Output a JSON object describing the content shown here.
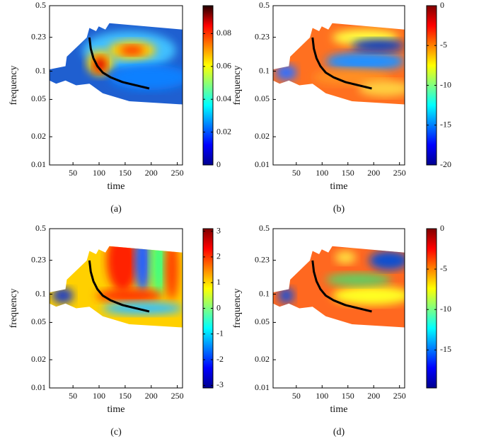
{
  "chart_data": [
    {
      "type": "heatmap",
      "caption": "(a)",
      "xlabel": "time",
      "ylabel": "frequency",
      "xlim": [
        5,
        260
      ],
      "xticks": [
        50,
        100,
        150,
        200,
        250
      ],
      "ylim": [
        0.01,
        0.5
      ],
      "yticks": [
        0.01,
        0.02,
        0.05,
        0.1,
        0.23,
        0.5
      ],
      "ylog": true,
      "colormap": "jet",
      "clim": [
        0,
        0.097
      ],
      "cticks": [
        0,
        0.02,
        0.04,
        0.06,
        0.08
      ]
    },
    {
      "type": "heatmap",
      "caption": "(b)",
      "xlabel": "time",
      "ylabel": "frequency",
      "xlim": [
        5,
        260
      ],
      "xticks": [
        50,
        100,
        150,
        200,
        250
      ],
      "ylim": [
        0.01,
        0.5
      ],
      "yticks": [
        0.01,
        0.02,
        0.05,
        0.1,
        0.23,
        0.5
      ],
      "ylog": true,
      "colormap": "jet",
      "clim": [
        -20,
        0
      ],
      "cticks": [
        -20,
        -15,
        -10,
        -5,
        0
      ]
    },
    {
      "type": "heatmap",
      "caption": "(c)",
      "xlabel": "time",
      "ylabel": "frequency",
      "xlim": [
        5,
        260
      ],
      "xticks": [
        50,
        100,
        150,
        200,
        250
      ],
      "ylim": [
        0.01,
        0.5
      ],
      "yticks": [
        0.01,
        0.02,
        0.05,
        0.1,
        0.23,
        0.5
      ],
      "ylog": true,
      "colormap": "jet",
      "clim": [
        -3.1,
        3.1
      ],
      "cticks": [
        -3,
        -2,
        -1,
        0,
        1,
        2,
        3
      ]
    },
    {
      "type": "heatmap",
      "caption": "(d)",
      "xlabel": "time",
      "ylabel": "frequency",
      "xlim": [
        5,
        260
      ],
      "xticks": [
        50,
        100,
        150,
        200,
        250
      ],
      "ylim": [
        0.01,
        0.5
      ],
      "yticks": [
        0.01,
        0.02,
        0.05,
        0.1,
        0.23,
        0.5
      ],
      "ylog": true,
      "colormap": "jet",
      "clim": [
        -19.7,
        0
      ],
      "cticks": [
        -15,
        -10,
        -5,
        0
      ]
    }
  ]
}
